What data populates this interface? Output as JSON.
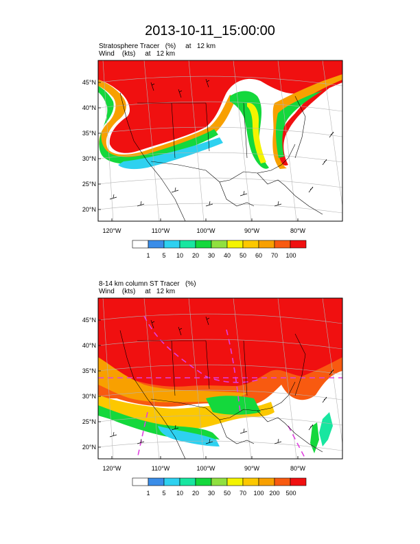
{
  "title": "2013-10-11_15:00:00",
  "panels": [
    {
      "subtitle_line1": "Stratosphere Tracer   (%)     at   12 km",
      "subtitle_line2": "Wind    (kts)     at   12 km",
      "lat_labels": [
        "45°N",
        "40°N",
        "35°N",
        "30°N",
        "25°N",
        "20°N"
      ],
      "lon_labels": [
        "120°W",
        "110°W",
        "100°W",
        "90°W",
        "80°W"
      ],
      "colorbar_labels": [
        "1",
        "5",
        "10",
        "20",
        "30",
        "40",
        "50",
        "60",
        "70",
        "100"
      ]
    },
    {
      "subtitle_line1": "8-14 km column ST Tracer   (%)",
      "subtitle_line2": "Wind    (kts)     at   12 km",
      "lat_labels": [
        "45°N",
        "40°N",
        "35°N",
        "30°N",
        "25°N",
        "20°N"
      ],
      "lon_labels": [
        "120°W",
        "110°W",
        "100°W",
        "90°W",
        "80°W"
      ],
      "colorbar_labels": [
        "1",
        "5",
        "10",
        "20",
        "30",
        "50",
        "70",
        "100",
        "200",
        "500"
      ]
    }
  ],
  "colorbar_colors": [
    "#ffffff",
    "#3a8de8",
    "#2ed1f0",
    "#18e6a0",
    "#14d83c",
    "#90e040",
    "#f4f400",
    "#fcc800",
    "#f8a000",
    "#f85a10",
    "#f01010"
  ],
  "colors": {
    "line": "#000000",
    "grid": "#b4b4b4",
    "dash": "#e040e0"
  }
}
